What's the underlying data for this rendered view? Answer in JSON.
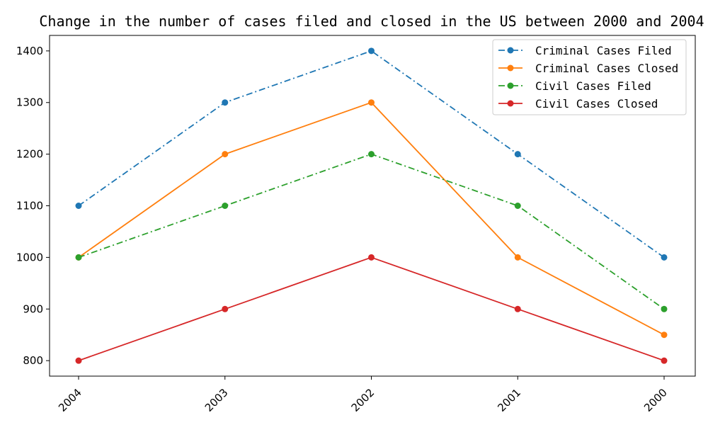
{
  "chart_data": {
    "type": "line",
    "title": "Change in the number of cases filed and closed in the US between 2000 and 2004",
    "xlabel": "",
    "ylabel": "",
    "categories": [
      "2004",
      "2003",
      "2002",
      "2001",
      "2000"
    ],
    "ylim": [
      770,
      1430
    ],
    "yticks": [
      800,
      900,
      1000,
      1100,
      1200,
      1300,
      1400
    ],
    "grid": false,
    "legend_position": "top-right",
    "series": [
      {
        "name": "Criminal Cases Filed",
        "values": [
          1100,
          1300,
          1400,
          1200,
          1000
        ],
        "color": "#1f77b4",
        "linestyle": "dashdot",
        "marker": "circle"
      },
      {
        "name": "Criminal Cases Closed",
        "values": [
          1000,
          1200,
          1300,
          1000,
          850
        ],
        "color": "#ff7f0e",
        "linestyle": "solid",
        "marker": "circle"
      },
      {
        "name": "Civil Cases Filed",
        "values": [
          1000,
          1100,
          1200,
          1100,
          900
        ],
        "color": "#2ca02c",
        "linestyle": "dashdot",
        "marker": "circle"
      },
      {
        "name": "Civil Cases Closed",
        "values": [
          800,
          900,
          1000,
          900,
          800
        ],
        "color": "#d62728",
        "linestyle": "solid",
        "marker": "circle"
      }
    ]
  }
}
